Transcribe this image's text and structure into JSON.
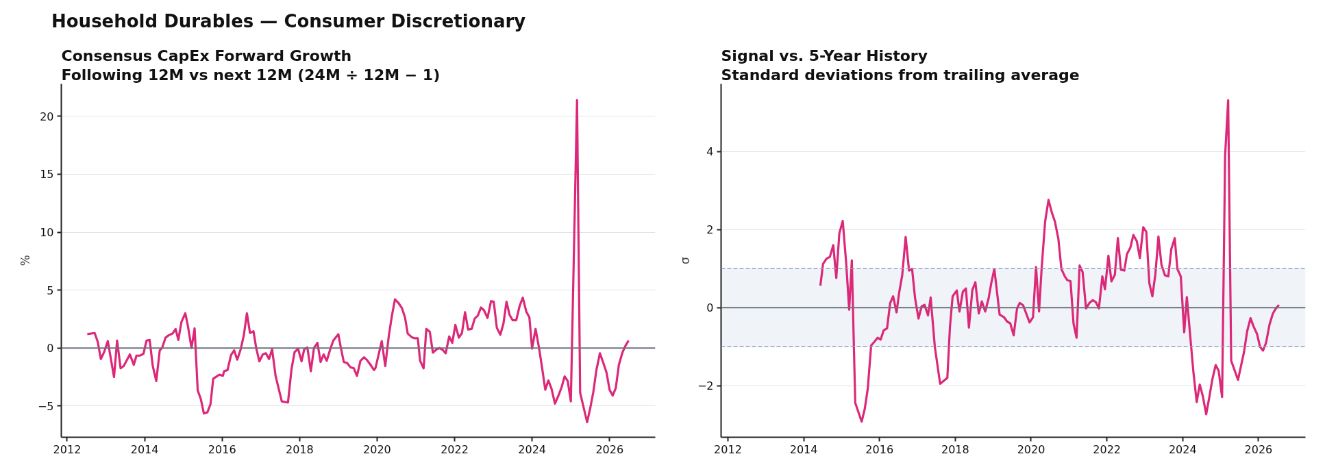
{
  "chart_data": [
    {
      "type": "line",
      "title": "Consensus CapEx Forward Growth",
      "subtitle": "Following 12M vs next 12M (24M ÷ 12M − 1)",
      "ylabel": "%",
      "annotations": [
        "Household Durables — Consumer Discretionary"
      ],
      "xlim": [
        2011.85,
        2027.18
      ],
      "xticks": [
        2012,
        2014,
        2016,
        2018,
        2020,
        2022,
        2024,
        2026
      ],
      "ylim": [
        -7.7,
        22.8
      ],
      "yticks": [
        {
          "value": -5,
          "label": "−5"
        },
        0,
        5,
        10,
        15,
        20
      ],
      "grid": "y",
      "line_style": "solid",
      "ref_lines": [
        {
          "axis": "y",
          "value": 0,
          "color": "#6e7380"
        }
      ],
      "series": [
        {
          "color": "#dc2878",
          "x": [
            2012.52,
            2012.71,
            2012.79,
            2012.87,
            2012.96,
            2013.05,
            2013.21,
            2013.29,
            2013.38,
            2013.46,
            2013.62,
            2013.72,
            2013.79,
            2013.88,
            2013.97,
            2014.05,
            2014.13,
            2014.21,
            2014.3,
            2014.39,
            2014.45,
            2014.54,
            2014.62,
            2014.72,
            2014.8,
            2014.87,
            2014.95,
            2015.05,
            2015.12,
            2015.21,
            2015.29,
            2015.37,
            2015.45,
            2015.53,
            2015.62,
            2015.7,
            2015.77,
            2015.88,
            2015.93,
            2016.02,
            2016.05,
            2016.14,
            2016.23,
            2016.31,
            2016.39,
            2016.48,
            2016.56,
            2016.64,
            2016.72,
            2016.81,
            2016.88,
            2016.96,
            2017.05,
            2017.13,
            2017.21,
            2017.29,
            2017.38,
            2017.54,
            2017.7,
            2017.79,
            2017.87,
            2017.96,
            2018.05,
            2018.12,
            2018.2,
            2018.29,
            2018.37,
            2018.46,
            2018.54,
            2018.62,
            2018.7,
            2018.79,
            2018.87,
            2019.0,
            2019.06,
            2019.14,
            2019.23,
            2019.31,
            2019.4,
            2019.48,
            2019.57,
            2019.66,
            2019.73,
            2019.83,
            2019.92,
            2019.96,
            2020.12,
            2020.21,
            2020.3,
            2020.38,
            2020.46,
            2020.55,
            2020.64,
            2020.72,
            2020.79,
            2020.89,
            2020.96,
            2021.05,
            2021.11,
            2021.2,
            2021.27,
            2021.36,
            2021.44,
            2021.54,
            2021.61,
            2021.69,
            2021.77,
            2021.86,
            2021.94,
            2022.02,
            2022.11,
            2022.19,
            2022.27,
            2022.35,
            2022.44,
            2022.52,
            2022.6,
            2022.68,
            2022.76,
            2022.85,
            2022.94,
            2023.01,
            2023.09,
            2023.18,
            2023.26,
            2023.34,
            2023.42,
            2023.5,
            2023.59,
            2023.68,
            2023.76,
            2023.85,
            2023.93,
            2024.0,
            2024.09,
            2024.18,
            2024.26,
            2024.34,
            2024.42,
            2024.5,
            2024.59,
            2024.68,
            2024.76,
            2024.84,
            2024.92,
            2025.0,
            2025.16,
            2025.24,
            2025.42,
            2025.5,
            2025.58,
            2025.66,
            2025.75,
            2025.83,
            2025.92,
            2026.0,
            2026.08,
            2026.16,
            2026.24,
            2026.33,
            2026.41,
            2026.49
          ],
          "values": [
            1.2,
            1.3,
            0.55,
            -0.95,
            -0.3,
            0.6,
            -2.5,
            0.65,
            -1.75,
            -1.55,
            -0.55,
            -1.45,
            -0.65,
            -0.65,
            -0.5,
            0.65,
            0.7,
            -1.55,
            -2.85,
            -0.2,
            0,
            0.9,
            1.1,
            1.25,
            1.65,
            0.7,
            2.25,
            3.0,
            1.85,
            0,
            1.7,
            -3.65,
            -4.4,
            -5.65,
            -5.55,
            -4.85,
            -2.65,
            -2.4,
            -2.3,
            -2.4,
            -2.0,
            -1.9,
            -0.6,
            -0.2,
            -1.0,
            -0.1,
            1.1,
            3.0,
            1.3,
            1.45,
            0,
            -1.15,
            -0.55,
            -0.45,
            -0.95,
            -0.1,
            -2.4,
            -4.6,
            -4.7,
            -1.85,
            -0.35,
            -0.05,
            -1.15,
            -0.1,
            0.05,
            -2.0,
            0,
            0.45,
            -1.2,
            -0.55,
            -1.1,
            -0.1,
            0.65,
            1.2,
            0.1,
            -1.2,
            -1.3,
            -1.65,
            -1.75,
            -2.4,
            -1.1,
            -0.8,
            -1.0,
            -1.45,
            -1.9,
            -1.7,
            0.6,
            -1.55,
            1.0,
            2.75,
            4.2,
            3.9,
            3.45,
            2.65,
            1.25,
            0.95,
            0.85,
            0.85,
            -1.1,
            -1.75,
            1.65,
            1.4,
            -0.4,
            -0.1,
            0,
            -0.15,
            -0.45,
            1.0,
            0.45,
            2.0,
            0.9,
            1.3,
            3.1,
            1.6,
            1.65,
            2.55,
            2.8,
            3.5,
            3.25,
            2.6,
            4.05,
            4.0,
            1.75,
            1.15,
            2.1,
            4.0,
            2.85,
            2.4,
            2.4,
            3.65,
            4.35,
            3.15,
            2.65,
            -0.05,
            1.65,
            0,
            -1.75,
            -3.6,
            -2.8,
            -3.5,
            -4.8,
            -4.1,
            -3.4,
            -2.45,
            -2.85,
            -4.6,
            21.4,
            -3.85,
            -6.4,
            -5.2,
            -3.8,
            -1.9,
            -0.45,
            -1.2,
            -2.1,
            -3.6,
            -4.1,
            -3.45,
            -1.45,
            -0.4,
            0.2,
            0.65
          ]
        }
      ]
    },
    {
      "type": "line",
      "title": "Signal vs. 5-Year History",
      "subtitle": "Standard deviations from trailing average",
      "ylabel": "σ",
      "xlim": [
        2011.82,
        2027.24
      ],
      "xticks": [
        2012,
        2014,
        2016,
        2018,
        2020,
        2022,
        2024,
        2026
      ],
      "ylim": [
        -3.32,
        5.73
      ],
      "yticks": [
        {
          "value": -2,
          "label": "−2"
        },
        0,
        2,
        4
      ],
      "grid": "y",
      "line_style": "solid",
      "ref_lines": [
        {
          "axis": "y",
          "value": 0,
          "color": "#6e7380"
        },
        {
          "axis": "y",
          "value": 1,
          "color": "#8fa3bf",
          "line_style": "dashed"
        },
        {
          "axis": "y",
          "value": -1,
          "color": "#8fa3bf",
          "line_style": "dashed"
        }
      ],
      "bands": [
        {
          "axis": "y",
          "from": -1,
          "to": 1,
          "color": "#f0f3f8"
        }
      ],
      "series": [
        {
          "color": "#dc2878",
          "x": [
            2014.44,
            2014.51,
            2014.6,
            2014.69,
            2014.78,
            2014.86,
            2014.94,
            2015.03,
            2015.12,
            2015.2,
            2015.27,
            2015.36,
            2015.53,
            2015.61,
            2015.69,
            2015.78,
            2015.87,
            2015.95,
            2016.03,
            2016.11,
            2016.2,
            2016.28,
            2016.36,
            2016.45,
            2016.52,
            2016.6,
            2016.69,
            2016.78,
            2016.86,
            2016.94,
            2017.03,
            2017.11,
            2017.19,
            2017.28,
            2017.35,
            2017.46,
            2017.6,
            2017.79,
            2017.86,
            2017.93,
            2018.04,
            2018.11,
            2018.2,
            2018.28,
            2018.36,
            2018.45,
            2018.53,
            2018.62,
            2018.7,
            2018.79,
            2018.88,
            2018.95,
            2019.03,
            2019.1,
            2019.17,
            2019.29,
            2019.37,
            2019.45,
            2019.54,
            2019.63,
            2019.7,
            2019.79,
            2019.96,
            2020.05,
            2020.13,
            2020.21,
            2020.28,
            2020.37,
            2020.46,
            2020.54,
            2020.63,
            2020.72,
            2020.8,
            2020.89,
            2020.96,
            2021.04,
            2021.12,
            2021.2,
            2021.28,
            2021.36,
            2021.45,
            2021.54,
            2021.63,
            2021.71,
            2021.79,
            2021.88,
            2021.95,
            2022.04,
            2022.12,
            2022.21,
            2022.29,
            2022.37,
            2022.46,
            2022.53,
            2022.62,
            2022.7,
            2022.79,
            2022.87,
            2022.96,
            2023.04,
            2023.12,
            2023.2,
            2023.28,
            2023.36,
            2023.44,
            2023.53,
            2023.62,
            2023.7,
            2023.79,
            2023.86,
            2023.95,
            2024.04,
            2024.11,
            2024.2,
            2024.28,
            2024.37,
            2024.45,
            2024.53,
            2024.62,
            2024.7,
            2024.78,
            2024.87,
            2024.95,
            2025.04,
            2025.12,
            2025.2,
            2025.28,
            2025.46,
            2025.54,
            2025.62,
            2025.7,
            2025.79,
            2025.87,
            2025.96,
            2026.04,
            2026.12,
            2026.2,
            2026.29,
            2026.38,
            2026.46,
            2026.54
          ],
          "values": [
            0.56,
            1.12,
            1.25,
            1.3,
            1.6,
            0.76,
            1.9,
            2.22,
            1.16,
            -0.05,
            1.21,
            -2.44,
            -2.92,
            -2.6,
            -2.08,
            -0.97,
            -0.87,
            -0.77,
            -0.82,
            -0.58,
            -0.53,
            0.11,
            0.29,
            -0.12,
            0.39,
            0.83,
            1.81,
            0.95,
            0.99,
            0.23,
            -0.28,
            0.03,
            0.07,
            -0.2,
            0.26,
            -1.0,
            -1.95,
            -1.8,
            -0.48,
            0.29,
            0.44,
            -0.1,
            0.41,
            0.49,
            -0.51,
            0.45,
            0.65,
            -0.15,
            0.16,
            -0.1,
            0.24,
            0.63,
            0.99,
            0.41,
            -0.18,
            -0.25,
            -0.36,
            -0.4,
            -0.71,
            -0.02,
            0.12,
            0.06,
            -0.38,
            -0.25,
            1.04,
            -0.1,
            1.03,
            2.2,
            2.76,
            2.46,
            2.2,
            1.76,
            0.99,
            0.8,
            0.7,
            0.68,
            -0.41,
            -0.77,
            1.08,
            0.91,
            -0.02,
            0.12,
            0.19,
            0.14,
            -0.02,
            0.8,
            0.47,
            1.33,
            0.67,
            0.84,
            1.78,
            0.97,
            0.95,
            1.37,
            1.54,
            1.86,
            1.7,
            1.27,
            2.06,
            1.94,
            0.63,
            0.29,
            0.86,
            1.82,
            1.1,
            0.83,
            0.8,
            1.5,
            1.78,
            0.99,
            0.8,
            -0.63,
            0.27,
            -0.74,
            -1.62,
            -2.42,
            -1.97,
            -2.26,
            -2.73,
            -2.31,
            -1.85,
            -1.47,
            -1.62,
            -2.29,
            3.9,
            5.31,
            -1.36,
            -1.85,
            -1.49,
            -1.13,
            -0.61,
            -0.27,
            -0.48,
            -0.67,
            -1.0,
            -1.1,
            -0.9,
            -0.44,
            -0.15,
            -0.02,
            0.07
          ]
        }
      ]
    }
  ]
}
